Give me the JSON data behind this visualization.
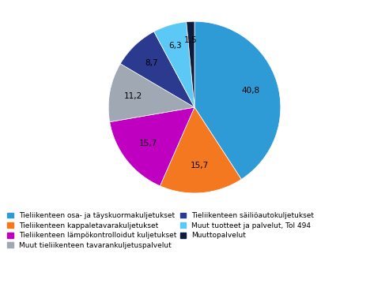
{
  "labels": [
    "Tieliikenteen osa- ja täyskuormakuljetukset",
    "Tieliikenteen kappaletavarakuljetukset",
    "Tieliikenteen lämpökontrolloidut kuljetukset",
    "Muut tieliikenteen tavarankuljetuspalvelut",
    "Tieliikenteen säiliöautokuljetukset",
    "Muut tuotteet ja palvelut, Tol 494",
    "Muuttopalvelut"
  ],
  "values": [
    40.8,
    15.7,
    15.7,
    11.2,
    8.7,
    6.3,
    1.5
  ],
  "colors": [
    "#2E9BD6",
    "#F47820",
    "#C000C0",
    "#A0A8B4",
    "#2B3A8F",
    "#5BC8F5",
    "#0D1B3E"
  ],
  "autopct_values": [
    "40,8",
    "15,7",
    "15,7",
    "11,2",
    "8,7",
    "6,3",
    "1,5"
  ],
  "figure_width": 4.92,
  "figure_height": 3.78
}
